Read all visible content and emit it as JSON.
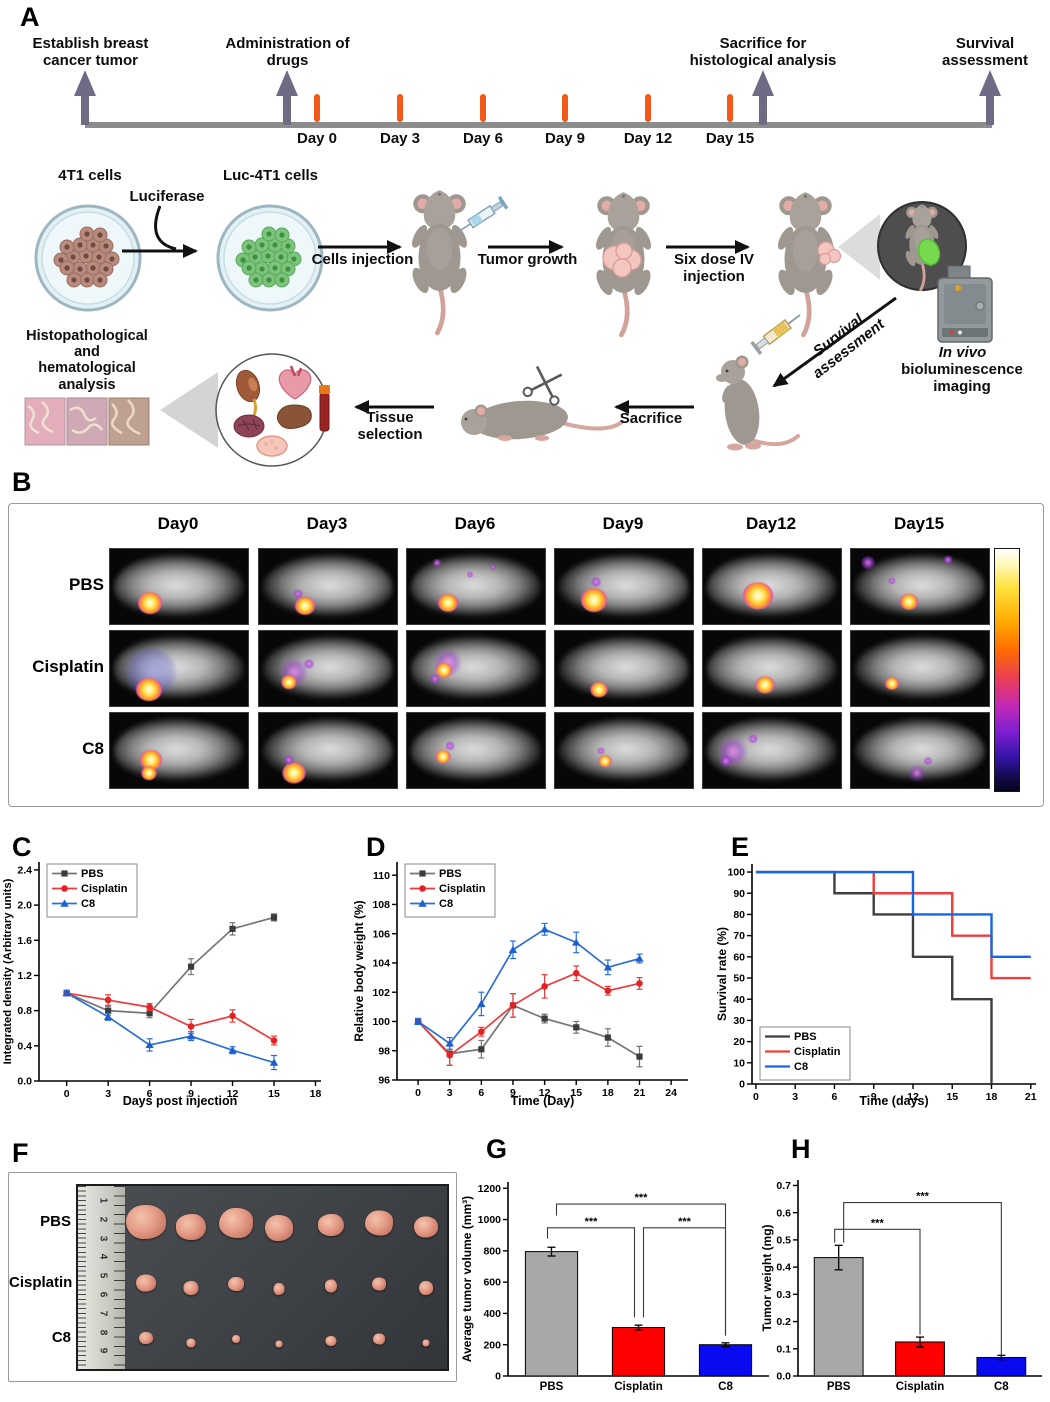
{
  "labels": {
    "A": "A",
    "B": "B",
    "C": "C",
    "D": "D",
    "E": "E",
    "F": "F",
    "G": "G",
    "H": "H"
  },
  "colors": {
    "timeline_arrow": "#6e6b85",
    "timeline_tick": "#f4591b",
    "timeline_line": "#8c8c8c",
    "pbs_gray": "#757575",
    "cisplatin_red": "#ee3a3c",
    "c8_blue": "#2a6fd6"
  },
  "panelA": {
    "timeline": {
      "events": [
        {
          "text": "Establish breast\ncancer tumor"
        },
        {
          "text": "Administration of\ndrugs"
        },
        {
          "text": "Sacrifice for\nhistological analysis"
        },
        {
          "text": "Survival\nassessment"
        }
      ],
      "days": [
        "Day 0",
        "Day 3",
        "Day 6",
        "Day 9",
        "Day 12",
        "Day 15"
      ]
    },
    "workflow": {
      "dish1": "4T1 cells",
      "luciferase": "Luciferase",
      "dish2": "Luc-4T1 cells",
      "cells_injection": "Cells injection",
      "tumor_growth": "Tumor growth",
      "six_dose": "Six dose IV\ninjection",
      "invivo_italic": "In vivo",
      "invivo_rest": "bioluminescence\nimaging",
      "survival_diag": "Survival\nassessment",
      "sacrifice": "Sacrifice",
      "tissue": "Tissue\nselection",
      "histo": "Histopathological\nand\nhematological\nanalysis"
    }
  },
  "panelB": {
    "days": [
      "Day0",
      "Day3",
      "Day6",
      "Day9",
      "Day12",
      "Day15"
    ],
    "rows": [
      {
        "label": "PBS",
        "cells": [
          {
            "spots": [
              [
                29,
                72,
                24,
                "bright"
              ]
            ]
          },
          {
            "spots": [
              [
                33,
                76,
                20,
                "bright"
              ],
              [
                28,
                60,
                10,
                "purple"
              ]
            ]
          },
          {
            "spots": [
              [
                30,
                72,
                20,
                "bright"
              ],
              [
                22,
                18,
                9,
                "purple"
              ],
              [
                46,
                34,
                7,
                "purple"
              ],
              [
                62,
                24,
                6,
                "purple"
              ]
            ]
          },
          {
            "spots": [
              [
                28,
                68,
                26,
                "bright"
              ],
              [
                30,
                44,
                11,
                "purple"
              ]
            ]
          },
          {
            "spots": [
              [
                40,
                62,
                30,
                "bright"
              ]
            ]
          },
          {
            "spots": [
              [
                42,
                70,
                18,
                "bright"
              ],
              [
                12,
                18,
                15,
                "purple"
              ],
              [
                70,
                14,
                10,
                "purple"
              ],
              [
                30,
                42,
                8,
                "purple"
              ]
            ]
          }
        ]
      },
      {
        "label": "Cisplatin",
        "cells": [
          {
            "spots": [
              [
                30,
                55,
                52,
                "blueglow"
              ],
              [
                28,
                78,
                26,
                "bright"
              ]
            ]
          },
          {
            "spots": [
              [
                25,
                55,
                30,
                "speckle"
              ],
              [
                22,
                68,
                15,
                "bright"
              ],
              [
                36,
                44,
                11,
                "purple"
              ]
            ]
          },
          {
            "spots": [
              [
                30,
                42,
                30,
                "speckle"
              ],
              [
                27,
                52,
                16,
                "bright"
              ],
              [
                20,
                64,
                11,
                "purple"
              ]
            ]
          },
          {
            "spots": [
              [
                32,
                78,
                17,
                "bright"
              ]
            ]
          },
          {
            "spots": [
              [
                45,
                72,
                19,
                "bright"
              ]
            ]
          },
          {
            "spots": [
              [
                30,
                70,
                14,
                "bright"
              ]
            ]
          }
        ]
      },
      {
        "label": "C8",
        "cells": [
          {
            "spots": [
              [
                30,
                62,
                22,
                "bright"
              ],
              [
                28,
                80,
                15,
                "bright"
              ]
            ]
          },
          {
            "spots": [
              [
                25,
                80,
                23,
                "bright"
              ],
              [
                22,
                62,
                11,
                "purple"
              ]
            ]
          },
          {
            "spots": [
              [
                26,
                58,
                15,
                "bright"
              ],
              [
                31,
                44,
                10,
                "purple"
              ]
            ]
          },
          {
            "spots": [
              [
                36,
                64,
                13,
                "bright"
              ],
              [
                33,
                50,
                8,
                "purple"
              ]
            ]
          },
          {
            "spots": [
              [
                22,
                52,
                32,
                "speckle"
              ],
              [
                17,
                64,
                13,
                "purple"
              ],
              [
                36,
                34,
                10,
                "purple"
              ]
            ]
          },
          {
            "spots": [
              [
                48,
                80,
                18,
                "speckle"
              ],
              [
                56,
                64,
                9,
                "purple"
              ]
            ]
          }
        ]
      }
    ]
  },
  "panelF": {
    "rows": [
      {
        "label": "PBS",
        "tumors": [
          [
            40,
            34
          ],
          [
            30,
            26
          ],
          [
            34,
            30
          ],
          [
            28,
            26
          ],
          [
            26,
            22
          ],
          [
            28,
            25
          ],
          [
            24,
            21
          ]
        ]
      },
      {
        "label": "Cisplatin",
        "tumors": [
          [
            20,
            17
          ],
          [
            15,
            14
          ],
          [
            16,
            14
          ],
          [
            11,
            12
          ],
          [
            12,
            13
          ],
          [
            14,
            13
          ],
          [
            14,
            14
          ]
        ]
      },
      {
        "label": "C8",
        "tumors": [
          [
            14,
            12
          ],
          [
            9,
            9
          ],
          [
            8,
            8
          ],
          [
            7,
            7
          ],
          [
            11,
            10
          ],
          [
            12,
            11
          ],
          [
            7,
            7
          ]
        ]
      }
    ],
    "ruler_numbers": [
      "1",
      "2",
      "3",
      "4",
      "5",
      "6",
      "7",
      "8",
      "9"
    ]
  },
  "chart_data": [
    {
      "id": "C",
      "type": "line",
      "xlabel": "Days post injection",
      "ylabel": "Integrated density (Arbitrary units)",
      "x": [
        0,
        3,
        6,
        9,
        12,
        15
      ],
      "xticks": [
        0,
        3,
        6,
        9,
        12,
        15,
        18
      ],
      "xtick_labels": [
        "0",
        "3",
        "6",
        "9",
        "12",
        "15",
        "18"
      ],
      "yticks": [
        0,
        0.4,
        0.8,
        1.2,
        1.6,
        2.0,
        2.4
      ],
      "ytick_labels": [
        "0.0",
        "0.4",
        "0.8",
        "1.2",
        "1.6",
        "2.0",
        "2.4"
      ],
      "xlim": [
        -2,
        18.4
      ],
      "ylim": [
        0,
        2.49
      ],
      "legend": "top-left",
      "series": [
        {
          "name": "PBS",
          "color": "#757575",
          "marker_color": "#3c3c3c",
          "symbol": "square",
          "values": [
            1.0,
            0.8,
            0.77,
            1.3,
            1.73,
            1.86
          ],
          "errors": [
            0.03,
            0.05,
            0.05,
            0.09,
            0.07,
            0.04
          ]
        },
        {
          "name": "Cisplatin",
          "color": "#ee3a3c",
          "marker_color": "#e02426",
          "symbol": "circle",
          "values": [
            1.0,
            0.92,
            0.84,
            0.62,
            0.74,
            0.46
          ],
          "errors": [
            0.03,
            0.06,
            0.04,
            0.08,
            0.07,
            0.05
          ]
        },
        {
          "name": "C8",
          "color": "#2a6fd6",
          "marker_color": "#1d5fd0",
          "symbol": "triangle",
          "values": [
            1.0,
            0.73,
            0.41,
            0.51,
            0.35,
            0.21
          ],
          "errors": [
            0.03,
            0.04,
            0.07,
            0.05,
            0.04,
            0.08
          ]
        }
      ]
    },
    {
      "id": "D",
      "type": "line",
      "xlabel": "Time (Day)",
      "ylabel": "Relative body weight (%)",
      "x": [
        0,
        3,
        6,
        9,
        12,
        15,
        18,
        21
      ],
      "xticks": [
        0,
        3,
        6,
        9,
        12,
        15,
        18,
        21,
        24
      ],
      "xtick_labels": [
        "0",
        "3",
        "6",
        "9",
        "12",
        "15",
        "18",
        "21",
        "24"
      ],
      "yticks": [
        96,
        98,
        100,
        102,
        104,
        106,
        108,
        110
      ],
      "ytick_labels": [
        "96",
        "98",
        "100",
        "102",
        "104",
        "106",
        "108",
        "110"
      ],
      "xlim": [
        -2,
        25.6
      ],
      "ylim": [
        96,
        110.9
      ],
      "legend": "top-left",
      "series": [
        {
          "name": "PBS",
          "color": "#757575",
          "marker_color": "#3c3c3c",
          "symbol": "square",
          "values": [
            100,
            97.8,
            98.1,
            101.1,
            100.2,
            99.6,
            98.9,
            97.6
          ],
          "errors": [
            0.2,
            0.8,
            0.6,
            0.8,
            0.3,
            0.4,
            0.6,
            0.7
          ]
        },
        {
          "name": "Cisplatin",
          "color": "#ee3a3c",
          "marker_color": "#e02426",
          "symbol": "circle",
          "values": [
            100,
            97.7,
            99.3,
            101.1,
            102.4,
            103.3,
            102.1,
            102.6
          ],
          "errors": [
            0.2,
            0.7,
            0.3,
            0.8,
            0.8,
            0.5,
            0.3,
            0.4
          ]
        },
        {
          "name": "C8",
          "color": "#2a6fd6",
          "marker_color": "#1d5fd0",
          "symbol": "triangle",
          "values": [
            100,
            98.5,
            101.2,
            104.9,
            106.3,
            105.4,
            103.7,
            104.3
          ],
          "errors": [
            0.2,
            0.4,
            0.8,
            0.6,
            0.4,
            0.7,
            0.5,
            0.3
          ]
        }
      ]
    },
    {
      "id": "E",
      "type": "step",
      "xlabel": "Time (days)",
      "ylabel": "Survival rate (%)",
      "xticks": [
        0,
        3,
        6,
        9,
        12,
        15,
        18,
        21
      ],
      "xtick_labels": [
        "0",
        "3",
        "6",
        "9",
        "12",
        "15",
        "18",
        "21"
      ],
      "yticks": [
        0,
        10,
        20,
        30,
        40,
        50,
        60,
        70,
        80,
        90,
        100
      ],
      "ytick_labels": [
        "0",
        "10",
        "20",
        "30",
        "40",
        "50",
        "60",
        "70",
        "80",
        "90",
        "100"
      ],
      "xlim": [
        -0.3,
        21.4
      ],
      "ylim": [
        0,
        103.8
      ],
      "legend": "bottom-left",
      "series": [
        {
          "name": "PBS",
          "color": "#3f3f3f",
          "points": [
            [
              0,
              100
            ],
            [
              6,
              100
            ],
            [
              6,
              90
            ],
            [
              9,
              90
            ],
            [
              9,
              80
            ],
            [
              12,
              80
            ],
            [
              12,
              60
            ],
            [
              15,
              60
            ],
            [
              15,
              40
            ],
            [
              18,
              40
            ],
            [
              18,
              0
            ]
          ]
        },
        {
          "name": "Cisplatin",
          "color": "#f23b3b",
          "points": [
            [
              0,
              100
            ],
            [
              9,
              100
            ],
            [
              9,
              90
            ],
            [
              15,
              90
            ],
            [
              15,
              70
            ],
            [
              18,
              70
            ],
            [
              18,
              50
            ],
            [
              21,
              50
            ]
          ]
        },
        {
          "name": "C8",
          "color": "#1467e6",
          "points": [
            [
              0,
              100
            ],
            [
              12,
              100
            ],
            [
              12,
              80
            ],
            [
              18,
              80
            ],
            [
              18,
              60
            ],
            [
              21,
              60
            ]
          ]
        }
      ]
    },
    {
      "id": "G",
      "type": "bar",
      "ylabel": "Average tumor volume (mm³)",
      "categories": [
        "PBS",
        "Cisplatin",
        "C8"
      ],
      "values": [
        795,
        310,
        200
      ],
      "errors": [
        28,
        15,
        12
      ],
      "colors": [
        "#a8a8a8",
        "#fe0000",
        "#0a0af0"
      ],
      "yticks": [
        0,
        200,
        400,
        600,
        800,
        1000,
        1200
      ],
      "ytick_labels": [
        "0",
        "200",
        "400",
        "600",
        "800",
        "1000",
        "1200"
      ],
      "ylim": [
        0,
        1240
      ],
      "brackets": [
        {
          "i": 0,
          "j": 2,
          "y": 1099,
          "y1": 1026,
          "y2": 257,
          "label": "***",
          "dx1": 5,
          "dx2": 0
        },
        {
          "i": 0,
          "j": 1,
          "y": 947,
          "y1": 878,
          "y2": 375,
          "label": "***",
          "dx1": -4,
          "dx2": -4
        },
        {
          "i": 1,
          "j": 2,
          "y": 947,
          "y1": 375,
          "y2": 262,
          "label": "***",
          "dx1": 5,
          "dx2": 0
        }
      ]
    },
    {
      "id": "H",
      "type": "bar",
      "ylabel": "Tumor weight (mg)",
      "categories": [
        "PBS",
        "Cisplatin",
        "C8"
      ],
      "values": [
        0.435,
        0.125,
        0.068
      ],
      "errors": [
        0.045,
        0.018,
        0.008
      ],
      "colors": [
        "#a8a8a8",
        "#fe0000",
        "#0a0af0"
      ],
      "yticks": [
        0,
        0.1,
        0.2,
        0.3,
        0.4,
        0.5,
        0.6,
        0.7
      ],
      "ytick_labels": [
        "0.0",
        "0.1",
        "0.2",
        "0.3",
        "0.4",
        "0.5",
        "0.6",
        "0.7"
      ],
      "ylim": [
        0,
        0.72
      ],
      "brackets": [
        {
          "i": 0,
          "j": 2,
          "y": 0.637,
          "y1": 0.49,
          "y2": 0.078,
          "label": "***",
          "dx1": 5,
          "dx2": 0
        },
        {
          "i": 0,
          "j": 1,
          "y": 0.539,
          "y1": 0.49,
          "y2": 0.152,
          "label": "***",
          "dx1": -4,
          "dx2": 0
        }
      ]
    }
  ]
}
